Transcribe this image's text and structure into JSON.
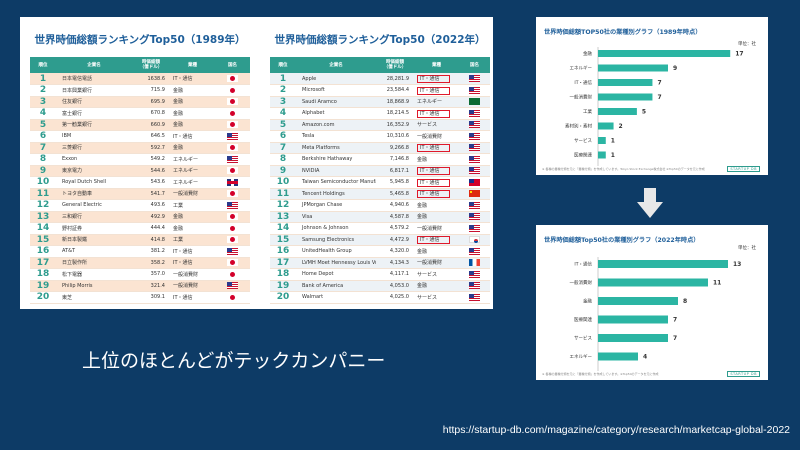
{
  "table_1989": {
    "title": "世界時価総額ランキングTop50（1989年）",
    "headers": {
      "rank": "順位",
      "company": "企業名",
      "value": "時価総額\n（億ドル）",
      "industry": "業種",
      "country": "国名"
    },
    "rows": [
      {
        "rank": "1",
        "company": "日本電信電話",
        "value": "1638.6",
        "industry": "IT・通信",
        "flag": "jp"
      },
      {
        "rank": "2",
        "company": "日本興業銀行",
        "value": "715.9",
        "industry": "金融",
        "flag": "jp"
      },
      {
        "rank": "3",
        "company": "住友銀行",
        "value": "695.9",
        "industry": "金融",
        "flag": "jp"
      },
      {
        "rank": "4",
        "company": "富士銀行",
        "value": "670.8",
        "industry": "金融",
        "flag": "jp"
      },
      {
        "rank": "5",
        "company": "第一勧業銀行",
        "value": "660.9",
        "industry": "金融",
        "flag": "jp"
      },
      {
        "rank": "6",
        "company": "IBM",
        "value": "646.5",
        "industry": "IT・通信",
        "flag": "us"
      },
      {
        "rank": "7",
        "company": "三菱銀行",
        "value": "592.7",
        "industry": "金融",
        "flag": "jp"
      },
      {
        "rank": "8",
        "company": "Exxon",
        "value": "549.2",
        "industry": "エネルギー",
        "flag": "us"
      },
      {
        "rank": "9",
        "company": "東京電力",
        "value": "544.6",
        "industry": "エネルギー",
        "flag": "jp"
      },
      {
        "rank": "10",
        "company": "Royal Dutch Shell",
        "value": "543.6",
        "industry": "エネルギー",
        "flag": "uk"
      },
      {
        "rank": "11",
        "company": "トヨタ自動車",
        "value": "541.7",
        "industry": "一般消費財",
        "flag": "jp"
      },
      {
        "rank": "12",
        "company": "General Electric",
        "value": "493.6",
        "industry": "工業",
        "flag": "us"
      },
      {
        "rank": "13",
        "company": "三和銀行",
        "value": "492.9",
        "industry": "金融",
        "flag": "jp"
      },
      {
        "rank": "14",
        "company": "野村証券",
        "value": "444.4",
        "industry": "金融",
        "flag": "jp"
      },
      {
        "rank": "15",
        "company": "新日本製鐵",
        "value": "414.8",
        "industry": "工業",
        "flag": "jp"
      },
      {
        "rank": "16",
        "company": "AT&T",
        "value": "381.2",
        "industry": "IT・通信",
        "flag": "us"
      },
      {
        "rank": "17",
        "company": "日立製作所",
        "value": "358.2",
        "industry": "IT・通信",
        "flag": "jp"
      },
      {
        "rank": "18",
        "company": "松下電器",
        "value": "357.0",
        "industry": "一般消費財",
        "flag": "jp"
      },
      {
        "rank": "19",
        "company": "Philip Morris",
        "value": "321.4",
        "industry": "一般消費財",
        "flag": "us"
      },
      {
        "rank": "20",
        "company": "東芝",
        "value": "309.1",
        "industry": "IT・通信",
        "flag": "jp"
      }
    ]
  },
  "table_2022": {
    "title": "世界時価総額ランキングTop50（2022年）",
    "headers": {
      "rank": "順位",
      "company": "企業名",
      "value": "時価総額\n（億ドル）",
      "industry": "業種",
      "country": "国名"
    },
    "rows": [
      {
        "rank": "1",
        "company": "Apple",
        "value": "28,281.9",
        "industry": "IT・通信",
        "flag": "us",
        "highlight": true
      },
      {
        "rank": "2",
        "company": "Microsoft",
        "value": "23,584.4",
        "industry": "IT・通信",
        "flag": "us",
        "highlight": true
      },
      {
        "rank": "3",
        "company": "Saudi Aramco",
        "value": "18,868.9",
        "industry": "エネルギー",
        "flag": "sa"
      },
      {
        "rank": "4",
        "company": "Alphabet",
        "value": "18,214.5",
        "industry": "IT・通信",
        "flag": "us",
        "highlight": true
      },
      {
        "rank": "5",
        "company": "Amazon.com",
        "value": "16,352.9",
        "industry": "サービス",
        "flag": "us"
      },
      {
        "rank": "6",
        "company": "Tesla",
        "value": "10,310.6",
        "industry": "一般消費財",
        "flag": "us"
      },
      {
        "rank": "7",
        "company": "Meta Platforms",
        "value": "9,266.8",
        "industry": "IT・通信",
        "flag": "us",
        "highlight": true
      },
      {
        "rank": "8",
        "company": "Berkshire Hathaway",
        "value": "7,146.8",
        "industry": "金融",
        "flag": "us"
      },
      {
        "rank": "9",
        "company": "NVIDIA",
        "value": "6,817.1",
        "industry": "IT・通信",
        "flag": "us",
        "highlight": true
      },
      {
        "rank": "10",
        "company": "Taiwan Semiconductor Manufacturing",
        "value": "5,945.8",
        "industry": "IT・通信",
        "flag": "tw",
        "highlight": true
      },
      {
        "rank": "11",
        "company": "Tencent Holdings",
        "value": "5,465.8",
        "industry": "IT・通信",
        "flag": "cn",
        "highlight": true
      },
      {
        "rank": "12",
        "company": "JPMorgan Chase",
        "value": "4,940.6",
        "industry": "金融",
        "flag": "us"
      },
      {
        "rank": "13",
        "company": "Visa",
        "value": "4,587.8",
        "industry": "金融",
        "flag": "us"
      },
      {
        "rank": "14",
        "company": "Johnson & Johnson",
        "value": "4,579.2",
        "industry": "一般消費財",
        "flag": "us"
      },
      {
        "rank": "15",
        "company": "Samsung Electronics",
        "value": "4,472.9",
        "industry": "IT・通信",
        "flag": "kr",
        "highlight": true
      },
      {
        "rank": "16",
        "company": "UnitedHealth Group",
        "value": "4,320.0",
        "industry": "金融",
        "flag": "us"
      },
      {
        "rank": "17",
        "company": "LVMH Moet Hennessy Louis Vuitton",
        "value": "4,134.3",
        "industry": "一般消費財",
        "flag": "fr"
      },
      {
        "rank": "18",
        "company": "Home Depot",
        "value": "4,117.1",
        "industry": "サービス",
        "flag": "us"
      },
      {
        "rank": "19",
        "company": "Bank of America",
        "value": "4,053.0",
        "industry": "金融",
        "flag": "us"
      },
      {
        "rank": "20",
        "company": "Walmart",
        "value": "4,025.0",
        "industry": "サービス",
        "flag": "us"
      }
    ]
  },
  "chart_data": [
    {
      "type": "bar",
      "orientation": "horizontal",
      "title": "世界時価総額TOP50社の業種別グラフ（1989年時点）",
      "unit_label": "単位：社",
      "categories": [
        "金融",
        "エネルギー",
        "IT・通信",
        "一般消費財",
        "工業",
        "素材別・素材",
        "サービス",
        "医療関連"
      ],
      "values": [
        17,
        9,
        7,
        7,
        5,
        2,
        1,
        1
      ],
      "xlim": [
        0,
        18
      ],
      "bar_color": "#2bb5a3",
      "footnote": "※ 各種の業種分類を元に「業種分類」を作成しています。Tokyo Stock Exchange株式会社 ※Top50のデータを元に作成",
      "brand": "STARTUP DB"
    },
    {
      "type": "bar",
      "orientation": "horizontal",
      "title": "世界時価総額Top50社の業種別グラフ（2022年時点）",
      "unit_label": "単位：社",
      "categories": [
        "IT・通信",
        "一般消費財",
        "金融",
        "医療関連",
        "サービス",
        "エネルギー"
      ],
      "values": [
        13,
        11,
        8,
        7,
        7,
        4
      ],
      "xlim": [
        0,
        14
      ],
      "bar_color": "#2bb5a3",
      "footnote": "※ 各種の業種分類を元に「業種分類」を作成しています。※Top50のデータを元に作成",
      "brand": "STARTUP DB"
    }
  ],
  "caption": "上位のほとんどがテックカンパニー",
  "source_url": "https://startup-db.com/magazine/category/research/marketcap-global-2022"
}
